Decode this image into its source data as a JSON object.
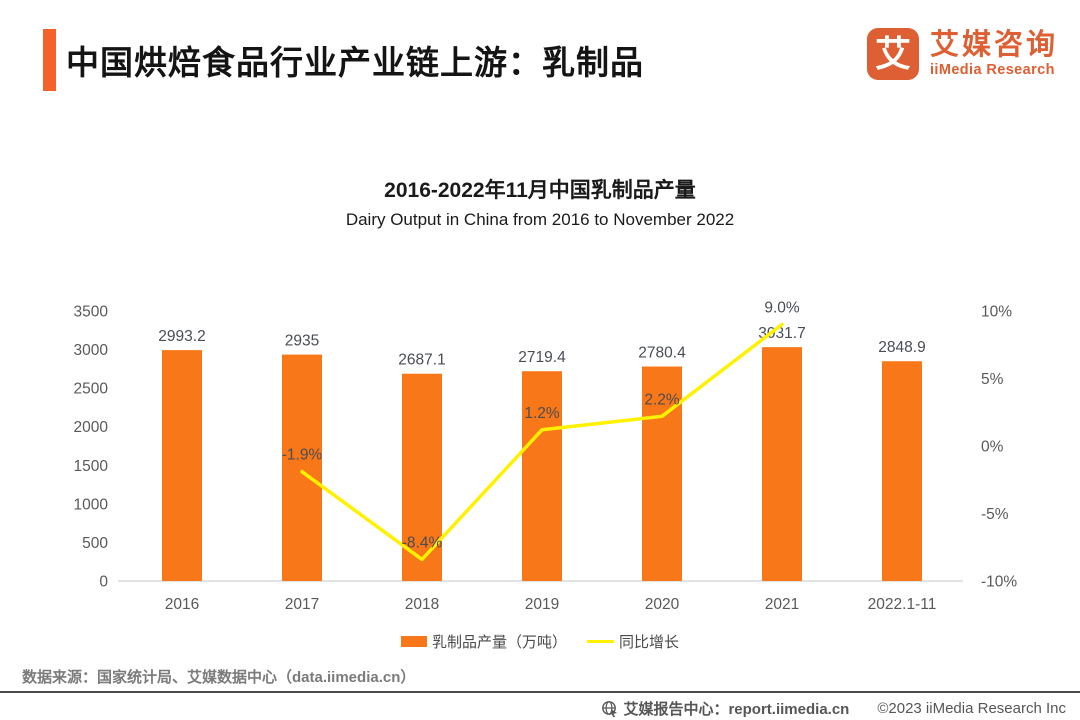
{
  "header": {
    "title": "中国烘焙食品行业产业链上游：乳制品",
    "logo": {
      "mark": "艾",
      "name_cn": "艾媒咨询",
      "name_en": "iiMedia Research"
    }
  },
  "chart": {
    "title_cn": "2016-2022年11月中国乳制品产量",
    "title_en": "Dairy Output in China from 2016 to November 2022"
  },
  "chart_data": {
    "type": "bar",
    "categories": [
      "2016",
      "2017",
      "2018",
      "2019",
      "2020",
      "2021",
      "2022.1-11"
    ],
    "series": [
      {
        "name": "乳制品产量（万吨）",
        "type": "bar",
        "color": "#F87718",
        "values": [
          2993.2,
          2935,
          2687.1,
          2719.4,
          2780.4,
          3031.7,
          2848.9
        ],
        "labels": [
          "2993.2",
          "2935",
          "2687.1",
          "2719.4",
          "2780.4",
          "3031.7",
          "2848.9"
        ]
      },
      {
        "name": "同比增长",
        "type": "line",
        "color": "#FFF100",
        "values": [
          null,
          -1.9,
          -8.4,
          1.2,
          2.2,
          9.0,
          null
        ],
        "labels": [
          "",
          "-1.9%",
          "-8.4%",
          "1.2%",
          "2.2%",
          "9.0%",
          ""
        ]
      }
    ],
    "left_axis": {
      "range": [
        0,
        3500
      ],
      "ticks": [
        0,
        500,
        1000,
        1500,
        2000,
        2500,
        3000,
        3500
      ]
    },
    "right_axis": {
      "range": [
        -10,
        10
      ],
      "ticks": [
        10,
        5,
        0,
        -5,
        -10
      ],
      "tick_labels": [
        "10%",
        "5%",
        "0%",
        "-5%",
        "-10%"
      ]
    },
    "grid": false,
    "legend_position": "bottom",
    "colors": {
      "bar": "#F87718",
      "line": "#FFF100",
      "axis_text": "#595959",
      "data_label": "#4a4d55",
      "baseline": "#D9D9D9"
    }
  },
  "footer": {
    "source": "数据来源：国家统计局、艾媒数据中心（data.iimedia.cn）",
    "report_center": "艾媒报告中心：report.iimedia.cn",
    "copyright": "©2023 iiMedia Research  Inc"
  }
}
